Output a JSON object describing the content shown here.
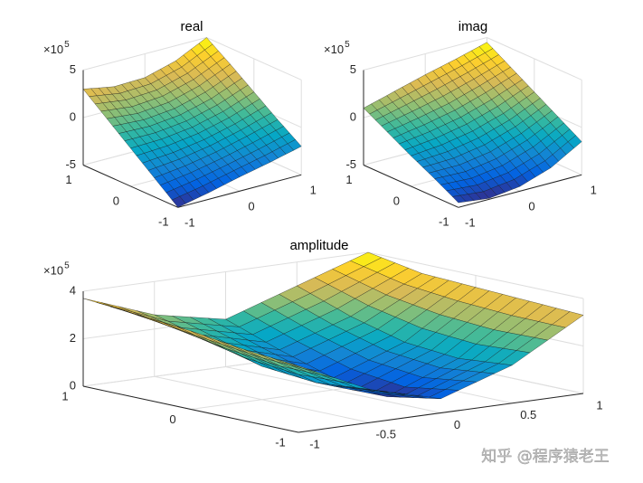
{
  "chart_data": [
    {
      "type": "surface",
      "title": "real",
      "x": [
        -1,
        -0.5,
        0,
        0.5,
        1
      ],
      "y": [
        -1,
        -0.5,
        0,
        0.5,
        1
      ],
      "z": [
        [
          -5,
          -4.3,
          -3.5,
          -2.8,
          -2
        ],
        [
          -3,
          -2.6,
          -2,
          -1.2,
          -0.3
        ],
        [
          -1,
          -0.9,
          -0.5,
          0.3,
          1.5
        ],
        [
          1,
          0.7,
          1,
          1.9,
          3.3
        ],
        [
          3,
          2.4,
          2.5,
          3.4,
          5
        ]
      ],
      "xlim": [
        -1,
        1
      ],
      "ylim": [
        -1,
        1
      ],
      "zlim": [
        -5,
        5
      ],
      "xticks": [
        -1,
        0,
        1
      ],
      "yticks": [
        -1,
        0,
        1
      ],
      "zticks": [
        -5,
        0,
        5
      ],
      "z_exponent_label": {
        "base": "×10",
        "power": "5"
      },
      "colormap": "parula",
      "grid": true
    },
    {
      "type": "surface",
      "title": "imag",
      "x": [
        -1,
        -0.5,
        0,
        0.5,
        1
      ],
      "y": [
        -1,
        -0.5,
        0,
        0.5,
        1
      ],
      "z": [
        [
          -4.5,
          -4.9,
          -4.5,
          -3.4,
          -1.5
        ],
        [
          -3.1,
          -3.2,
          -2.7,
          -1.6,
          0
        ],
        [
          -1.8,
          -1.5,
          -0.9,
          0.1,
          1.5
        ],
        [
          -0.4,
          0.2,
          0.9,
          1.9,
          3
        ],
        [
          1,
          1.9,
          2.8,
          3.6,
          4.5
        ]
      ],
      "xlim": [
        -1,
        1
      ],
      "ylim": [
        -1,
        1
      ],
      "zlim": [
        -5,
        5
      ],
      "xticks": [
        -1,
        0,
        1
      ],
      "yticks": [
        -1,
        0,
        1
      ],
      "zticks": [
        -5,
        0,
        5
      ],
      "z_exponent_label": {
        "base": "×10",
        "power": "5"
      },
      "colormap": "parula",
      "grid": true
    },
    {
      "type": "surface",
      "title": "amplitude",
      "x": [
        -1,
        -0.5,
        0,
        0.5,
        1
      ],
      "y": [
        -1,
        -0.5,
        0,
        0.5,
        1
      ],
      "z": [
        [
          2.8,
          1.4,
          0.6,
          1.6,
          3.3
        ],
        [
          3,
          1.2,
          0.2,
          1.4,
          3.4
        ],
        [
          3.3,
          1.4,
          0.5,
          1.6,
          3.5
        ],
        [
          3.5,
          2,
          1.2,
          2.2,
          3.6
        ],
        [
          3.7,
          2.6,
          2,
          3,
          4
        ]
      ],
      "xlim": [
        -1,
        1
      ],
      "ylim": [
        -1,
        1
      ],
      "zlim": [
        0,
        4
      ],
      "xticks": [
        -1,
        -0.5,
        0,
        0.5,
        1
      ],
      "yticks": [
        -1,
        0,
        1
      ],
      "zticks": [
        0,
        2,
        4
      ],
      "z_exponent_label": {
        "base": "×10",
        "power": "5"
      },
      "colormap": "parula",
      "grid": true
    }
  ],
  "watermark": "知乎 @程序猿老王"
}
